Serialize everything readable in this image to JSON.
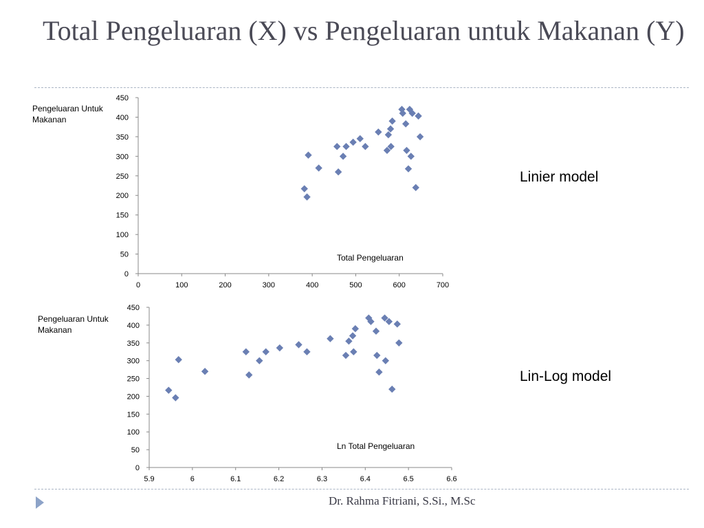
{
  "slide": {
    "title": "Total Pengeluaran (X) vs Pengeluaran untuk Makanan (Y)",
    "footer": "Dr. Rahma Fitriani, S.Si., M.Sc",
    "accent_color": "#8da3c8",
    "marker_color": "#6a7fb3",
    "bullet_icon": "triangle-right-icon"
  },
  "labels": {
    "linear_model": "Linier model",
    "linlog_model": "Lin-Log model"
  },
  "chart_data": [
    {
      "type": "scatter",
      "ylabel_lines": [
        "Pengeluaran Untuk",
        "Makanan"
      ],
      "xlabel": "Total Pengeluaran",
      "xlim": [
        0,
        700
      ],
      "ylim": [
        0,
        450
      ],
      "xticks": [
        0,
        100,
        200,
        300,
        400,
        500,
        600,
        700
      ],
      "yticks": [
        0,
        50,
        100,
        150,
        200,
        250,
        300,
        350,
        400,
        450
      ],
      "xtick_labels": [
        "0",
        "100",
        "200",
        "300",
        "400",
        "500",
        "600",
        "700"
      ],
      "ytick_labels": [
        "0",
        "50",
        "100",
        "150",
        "200",
        "250",
        "300",
        "350",
        "400",
        "450"
      ],
      "grid": false,
      "points": [
        [
          382,
          217
        ],
        [
          388,
          196
        ],
        [
          391,
          303
        ],
        [
          415,
          270
        ],
        [
          457,
          325
        ],
        [
          460,
          260
        ],
        [
          471,
          300
        ],
        [
          478,
          325
        ],
        [
          494,
          336
        ],
        [
          510,
          345
        ],
        [
          522,
          325
        ],
        [
          552,
          362
        ],
        [
          572,
          315
        ],
        [
          575,
          355
        ],
        [
          580,
          370
        ],
        [
          581,
          325
        ],
        [
          584,
          390
        ],
        [
          606,
          420
        ],
        [
          608,
          410
        ],
        [
          615,
          383
        ],
        [
          617,
          315
        ],
        [
          621,
          268
        ],
        [
          624,
          420
        ],
        [
          627,
          300
        ],
        [
          630,
          410
        ],
        [
          638,
          220
        ],
        [
          644,
          403
        ],
        [
          648,
          350
        ]
      ]
    },
    {
      "type": "scatter",
      "ylabel_lines": [
        "Pengeluaran Untuk",
        "Makanan"
      ],
      "xlabel": "Ln Total Pengeluaran",
      "xlim": [
        5.9,
        6.6
      ],
      "ylim": [
        0,
        450
      ],
      "xticks": [
        5.9,
        6.0,
        6.1,
        6.2,
        6.3,
        6.4,
        6.5,
        6.6
      ],
      "yticks": [
        0,
        50,
        100,
        150,
        200,
        250,
        300,
        350,
        400,
        450
      ],
      "xtick_labels": [
        "5.9",
        "6",
        "6.1",
        "6.2",
        "6.3",
        "6.4",
        "6.5",
        "6.6"
      ],
      "ytick_labels": [
        "0",
        "50",
        "100",
        "150",
        "200",
        "250",
        "300",
        "350",
        "400",
        "450"
      ],
      "grid": false,
      "points": [
        [
          5.945,
          217
        ],
        [
          5.961,
          196
        ],
        [
          5.968,
          303
        ],
        [
          6.029,
          270
        ],
        [
          6.124,
          325
        ],
        [
          6.131,
          260
        ],
        [
          6.155,
          300
        ],
        [
          6.17,
          325
        ],
        [
          6.202,
          336
        ],
        [
          6.246,
          345
        ],
        [
          6.265,
          325
        ],
        [
          6.319,
          362
        ],
        [
          6.355,
          315
        ],
        [
          6.362,
          355
        ],
        [
          6.371,
          370
        ],
        [
          6.373,
          325
        ],
        [
          6.377,
          390
        ],
        [
          6.408,
          420
        ],
        [
          6.413,
          410
        ],
        [
          6.425,
          383
        ],
        [
          6.427,
          315
        ],
        [
          6.432,
          268
        ],
        [
          6.445,
          420
        ],
        [
          6.447,
          300
        ],
        [
          6.455,
          410
        ],
        [
          6.462,
          220
        ],
        [
          6.474,
          403
        ],
        [
          6.478,
          350
        ]
      ]
    }
  ]
}
